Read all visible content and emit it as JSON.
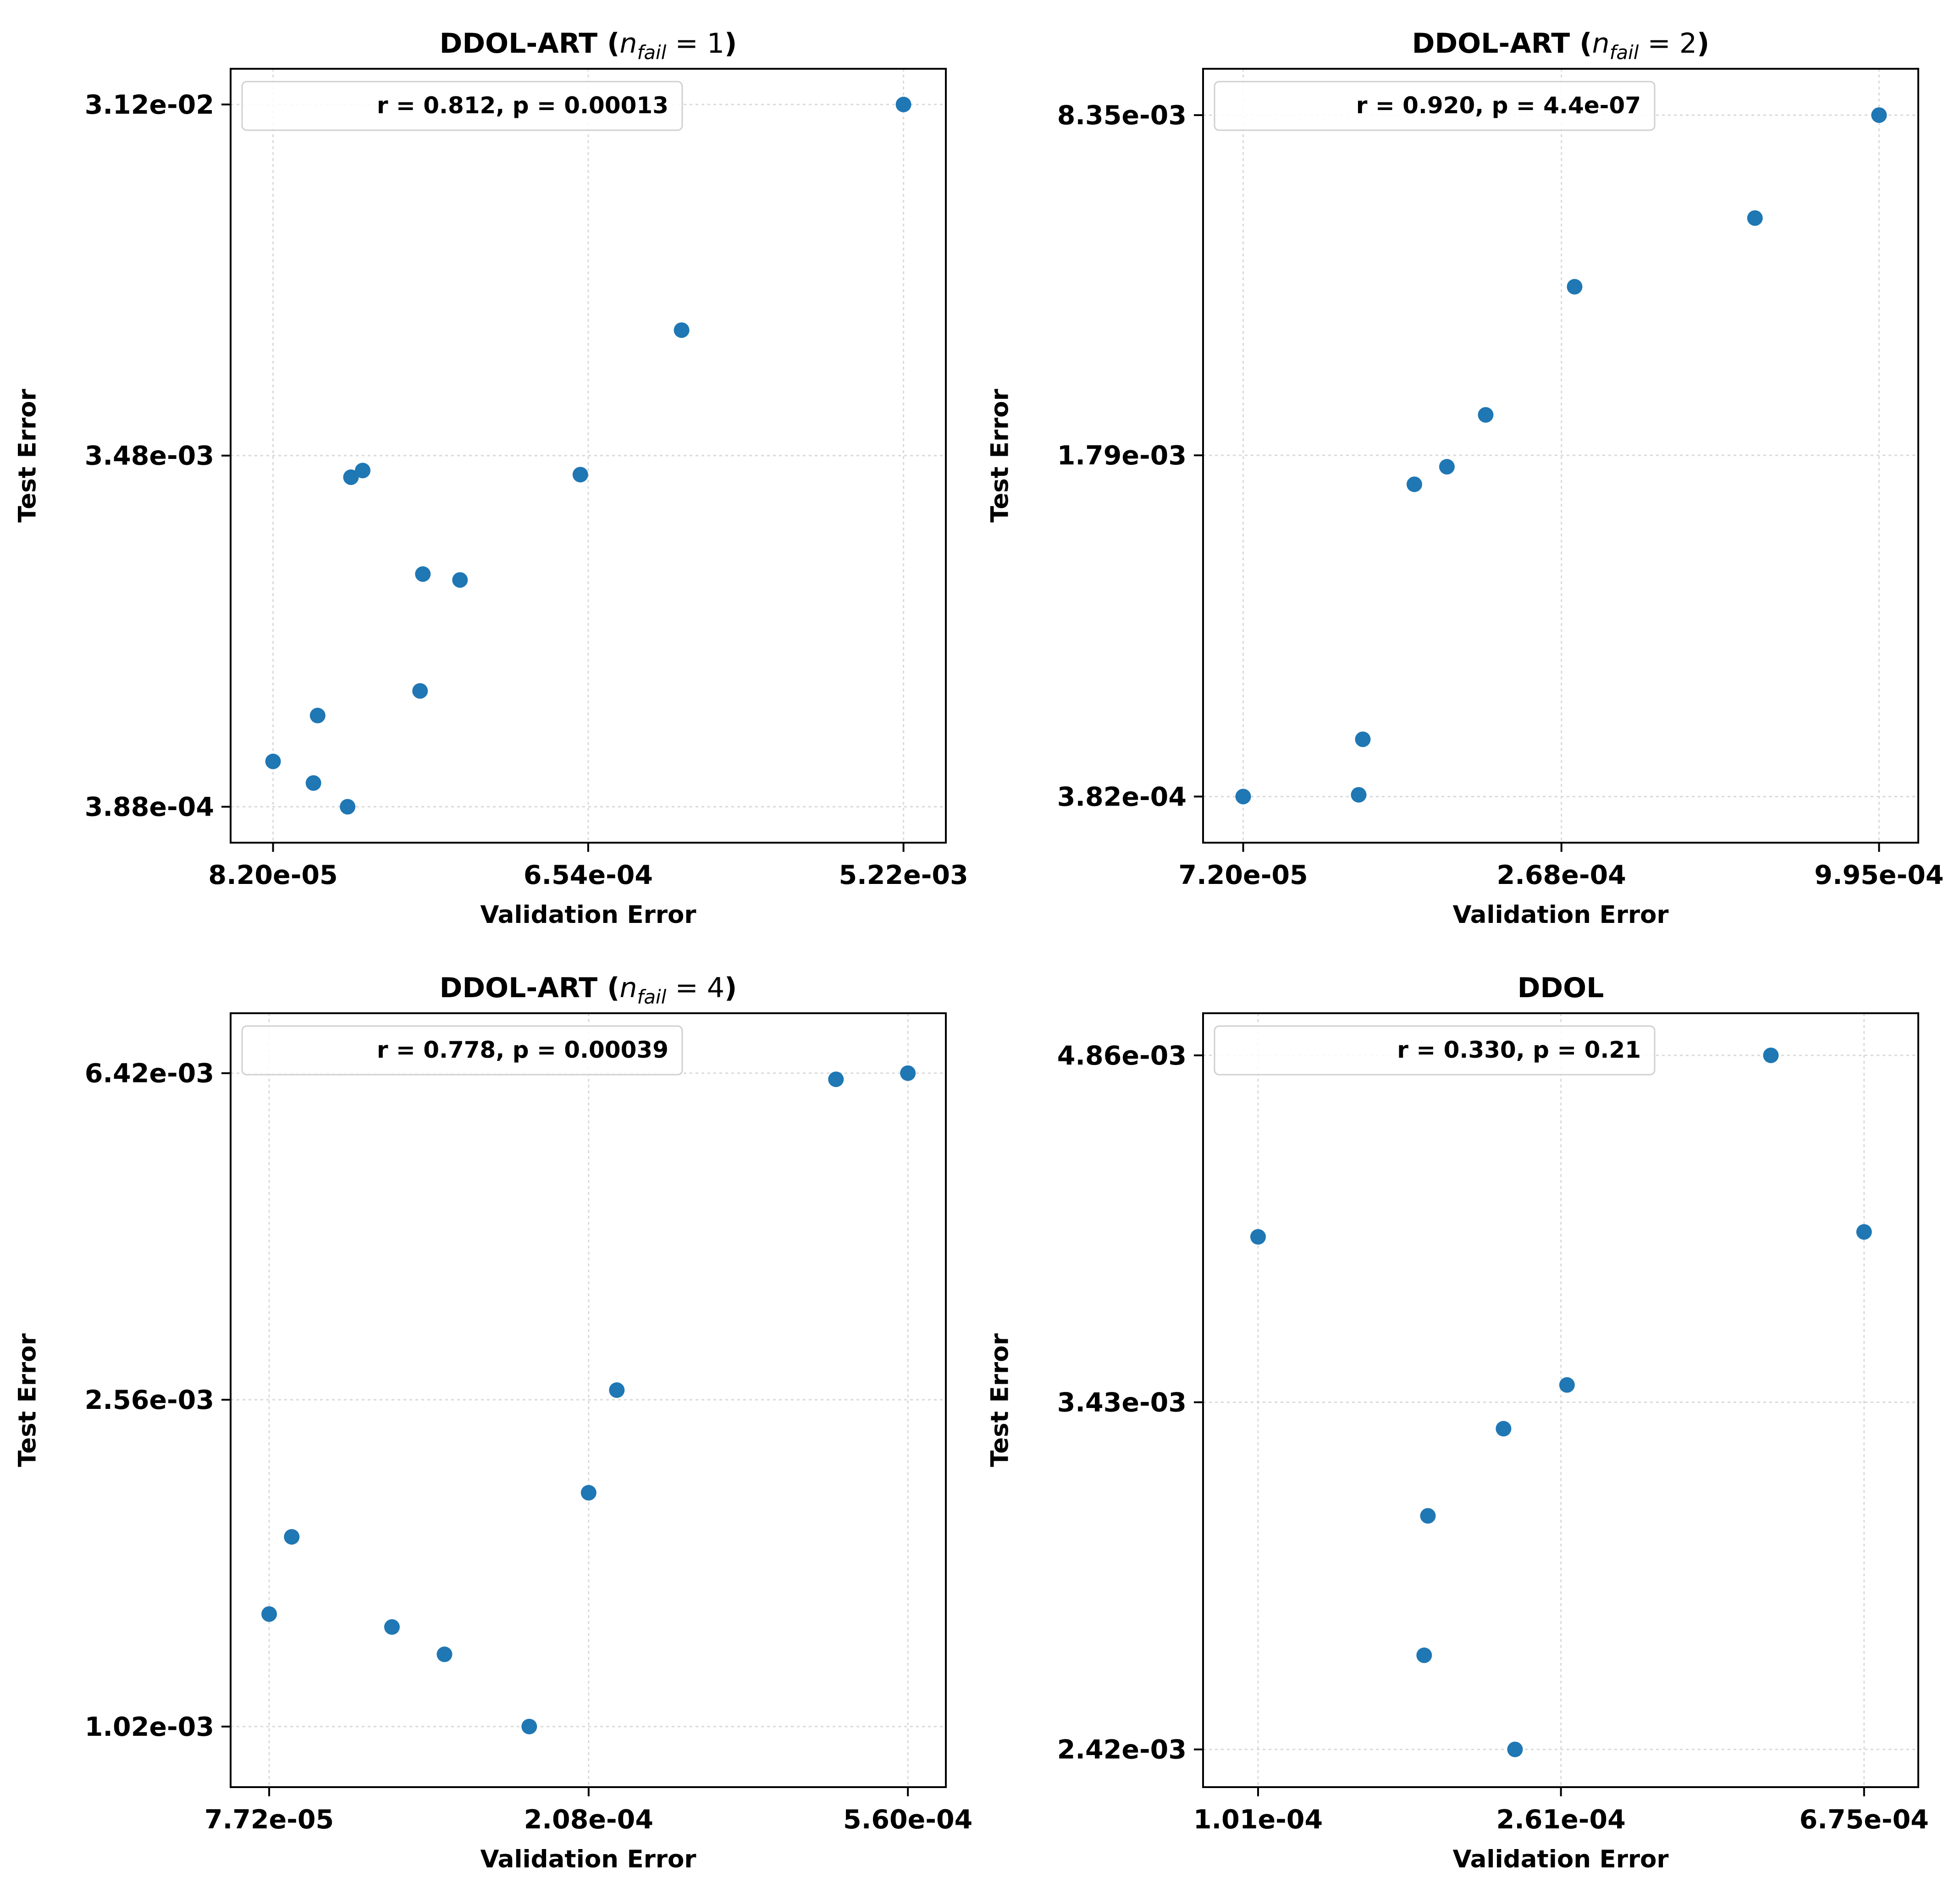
{
  "chart_data": [
    {
      "type": "scatter",
      "title_main": "DDOL-ART (",
      "title_var": "n",
      "title_sub": "fail",
      "title_eq": " = 1",
      "title_end": ")",
      "xlabel": "Validation Error",
      "ylabel": "Test Error",
      "scale": "log",
      "xlim": [
        6.2e-05,
        0.0069
      ],
      "ylim": [
        0.00031,
        0.039
      ],
      "xticks": [
        8.2e-05,
        0.000654,
        0.00522
      ],
      "xtick_labels": [
        "8.20e-05",
        "6.54e-04",
        "5.22e-03"
      ],
      "yticks": [
        0.000388,
        0.00348,
        0.0312
      ],
      "ytick_labels": [
        "3.88e-04",
        "3.48e-03",
        "3.12e-02"
      ],
      "legend": "r = 0.812,  p = 0.00013",
      "color": "#1f77b4",
      "points": [
        {
          "x": 8.2e-05,
          "y": 0.000515
        },
        {
          "x": 0.000107,
          "y": 0.00045
        },
        {
          "x": 0.00011,
          "y": 0.000686
        },
        {
          "x": 0.000134,
          "y": 0.000388
        },
        {
          "x": 0.000137,
          "y": 0.00304
        },
        {
          "x": 0.000148,
          "y": 0.00317
        },
        {
          "x": 0.000216,
          "y": 0.0008
        },
        {
          "x": 0.00022,
          "y": 0.00166
        },
        {
          "x": 0.000281,
          "y": 0.0016
        },
        {
          "x": 0.000621,
          "y": 0.00309
        },
        {
          "x": 0.00121,
          "y": 0.00762
        },
        {
          "x": 0.00522,
          "y": 0.0312
        }
      ]
    },
    {
      "type": "scatter",
      "title_main": "DDOL-ART (",
      "title_var": "n",
      "title_sub": "fail",
      "title_eq": " = 2",
      "title_end": ")",
      "xlabel": "Validation Error",
      "ylabel": "Test Error",
      "scale": "log",
      "xlim": [
        6.1e-05,
        0.00117
      ],
      "ylim": [
        0.00031,
        0.0103
      ],
      "xticks": [
        7.2e-05,
        0.000268,
        0.000995
      ],
      "xtick_labels": [
        "7.20e-05",
        "2.68e-04",
        "9.95e-04"
      ],
      "yticks": [
        0.000382,
        0.00179,
        0.00835
      ],
      "ytick_labels": [
        "3.82e-04",
        "1.79e-03",
        "8.35e-03"
      ],
      "legend": "r = 0.920,  p = 4.4e-07",
      "color": "#1f77b4",
      "points": [
        {
          "x": 7.2e-05,
          "y": 0.000382
        },
        {
          "x": 0.000116,
          "y": 0.000385
        },
        {
          "x": 0.000118,
          "y": 0.000495
        },
        {
          "x": 0.000146,
          "y": 0.00157
        },
        {
          "x": 0.000167,
          "y": 0.0017
        },
        {
          "x": 0.000196,
          "y": 0.00215
        },
        {
          "x": 0.000283,
          "y": 0.00384
        },
        {
          "x": 0.000596,
          "y": 0.00524
        },
        {
          "x": 0.000995,
          "y": 0.00835
        }
      ]
    },
    {
      "type": "scatter",
      "title_main": "DDOL-ART (",
      "title_var": "n",
      "title_sub": "fail",
      "title_eq": " = 4",
      "title_end": ")",
      "xlabel": "Validation Error",
      "ylabel": "Test Error",
      "scale": "log",
      "xlim": [
        6.85e-05,
        0.00063
      ],
      "ylim": [
        0.00086,
        0.0076
      ],
      "xticks": [
        7.72e-05,
        0.000208,
        0.00056
      ],
      "xtick_labels": [
        "7.72e-05",
        "2.08e-04",
        "5.60e-04"
      ],
      "yticks": [
        0.00102,
        0.00256,
        0.00642
      ],
      "ytick_labels": [
        "1.02e-03",
        "2.56e-03",
        "6.42e-03"
      ],
      "legend": "r = 0.778,  p = 0.00039",
      "color": "#1f77b4",
      "points": [
        {
          "x": 7.72e-05,
          "y": 0.0014
        },
        {
          "x": 8.28e-05,
          "y": 0.00174
        },
        {
          "x": 0.000113,
          "y": 0.00135
        },
        {
          "x": 0.000133,
          "y": 0.00125
        },
        {
          "x": 0.000173,
          "y": 0.00102
        },
        {
          "x": 0.000208,
          "y": 0.00197
        },
        {
          "x": 0.000227,
          "y": 0.00263
        },
        {
          "x": 0.000448,
          "y": 0.00631
        },
        {
          "x": 0.00056,
          "y": 0.00642
        }
      ]
    },
    {
      "type": "scatter",
      "title_main": "DDOL",
      "title_var": "",
      "title_sub": "",
      "title_eq": "",
      "title_end": "",
      "xlabel": "Validation Error",
      "ylabel": "Test Error",
      "scale": "log",
      "xlim": [
        8.5e-05,
        0.0008
      ],
      "ylim": [
        0.00233,
        0.00507
      ],
      "xticks": [
        0.000101,
        0.000261,
        0.000675
      ],
      "xtick_labels": [
        "1.01e-04",
        "2.61e-04",
        "6.75e-04"
      ],
      "yticks": [
        0.00242,
        0.00343,
        0.00486
      ],
      "ytick_labels": [
        "2.42e-03",
        "3.43e-03",
        "4.86e-03"
      ],
      "legend": "r = 0.330,  p = 0.21",
      "color": "#1f77b4",
      "points": [
        {
          "x": 0.000101,
          "y": 0.00405
        },
        {
          "x": 0.00017,
          "y": 0.00266
        },
        {
          "x": 0.000172,
          "y": 0.00306
        },
        {
          "x": 0.000226,
          "y": 0.00242
        },
        {
          "x": 0.000218,
          "y": 0.00334
        },
        {
          "x": 0.000266,
          "y": 0.00349
        },
        {
          "x": 0.000504,
          "y": 0.00486
        },
        {
          "x": 0.000675,
          "y": 0.00407
        }
      ]
    }
  ]
}
